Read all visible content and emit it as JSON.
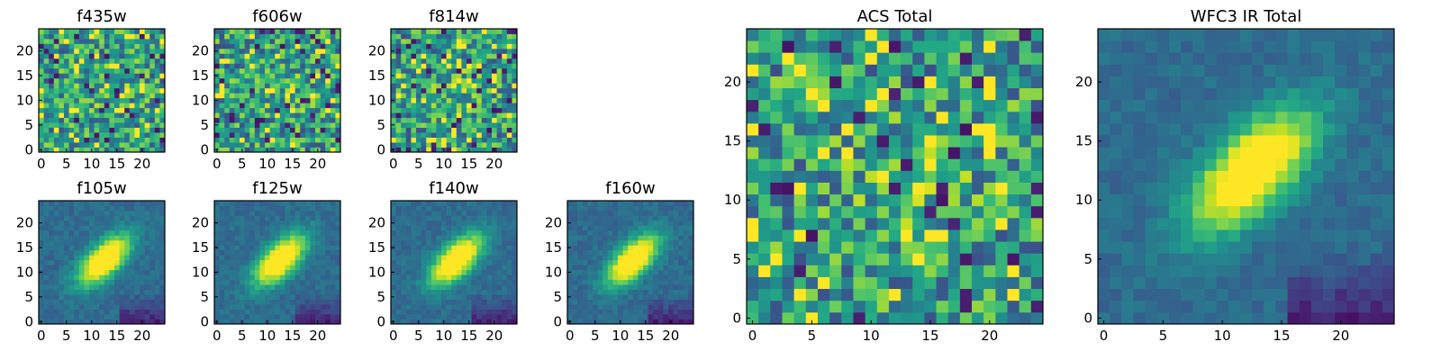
{
  "chart_data": [
    {
      "type": "heatmap",
      "title": "f435w",
      "pattern": "noise",
      "xticks": [
        "0",
        "5",
        "10",
        "15",
        "20"
      ],
      "yticks": [
        "0",
        "5",
        "10",
        "15",
        "20"
      ],
      "xlim": [
        0,
        25
      ],
      "ylim": [
        0,
        25
      ],
      "colormap": "viridis"
    },
    {
      "type": "heatmap",
      "title": "f606w",
      "pattern": "noise",
      "xticks": [
        "0",
        "5",
        "10",
        "15",
        "20"
      ],
      "yticks": [
        "0",
        "5",
        "10",
        "15",
        "20"
      ],
      "xlim": [
        0,
        25
      ],
      "ylim": [
        0,
        25
      ],
      "colormap": "viridis"
    },
    {
      "type": "heatmap",
      "title": "f814w",
      "pattern": "noise",
      "xticks": [
        "0",
        "5",
        "10",
        "15",
        "20"
      ],
      "yticks": [
        "0",
        "5",
        "10",
        "15",
        "20"
      ],
      "xlim": [
        0,
        25
      ],
      "ylim": [
        0,
        25
      ],
      "colormap": "viridis"
    },
    {
      "type": "heatmap",
      "title": "f105w",
      "pattern": "source",
      "xticks": [
        "0",
        "5",
        "10",
        "15",
        "20"
      ],
      "yticks": [
        "0",
        "5",
        "10",
        "15",
        "20"
      ],
      "xlim": [
        0,
        25
      ],
      "ylim": [
        0,
        25
      ],
      "colormap": "viridis"
    },
    {
      "type": "heatmap",
      "title": "f125w",
      "pattern": "source",
      "xticks": [
        "0",
        "5",
        "10",
        "15",
        "20"
      ],
      "yticks": [
        "0",
        "5",
        "10",
        "15",
        "20"
      ],
      "xlim": [
        0,
        25
      ],
      "ylim": [
        0,
        25
      ],
      "colormap": "viridis"
    },
    {
      "type": "heatmap",
      "title": "f140w",
      "pattern": "source",
      "xticks": [
        "0",
        "5",
        "10",
        "15",
        "20"
      ],
      "yticks": [
        "0",
        "5",
        "10",
        "15",
        "20"
      ],
      "xlim": [
        0,
        25
      ],
      "ylim": [
        0,
        25
      ],
      "colormap": "viridis"
    },
    {
      "type": "heatmap",
      "title": "f160w",
      "pattern": "source",
      "xticks": [
        "0",
        "5",
        "10",
        "15",
        "20"
      ],
      "yticks": [
        "0",
        "5",
        "10",
        "15",
        "20"
      ],
      "xlim": [
        0,
        25
      ],
      "ylim": [
        0,
        25
      ],
      "colormap": "viridis"
    },
    {
      "type": "heatmap",
      "title": "ACS Total",
      "pattern": "noise",
      "xticks": [
        "0",
        "5",
        "10",
        "15",
        "20"
      ],
      "yticks": [
        "0",
        "5",
        "10",
        "15",
        "20"
      ],
      "xlim": [
        0,
        25
      ],
      "ylim": [
        0,
        25
      ],
      "colormap": "viridis"
    },
    {
      "type": "heatmap",
      "title": "WFC3 IR Total",
      "pattern": "source",
      "xticks": [
        "0",
        "5",
        "10",
        "15",
        "20"
      ],
      "yticks": [
        "0",
        "5",
        "10",
        "15",
        "20"
      ],
      "xlim": [
        0,
        25
      ],
      "ylim": [
        0,
        25
      ],
      "colormap": "viridis"
    }
  ]
}
